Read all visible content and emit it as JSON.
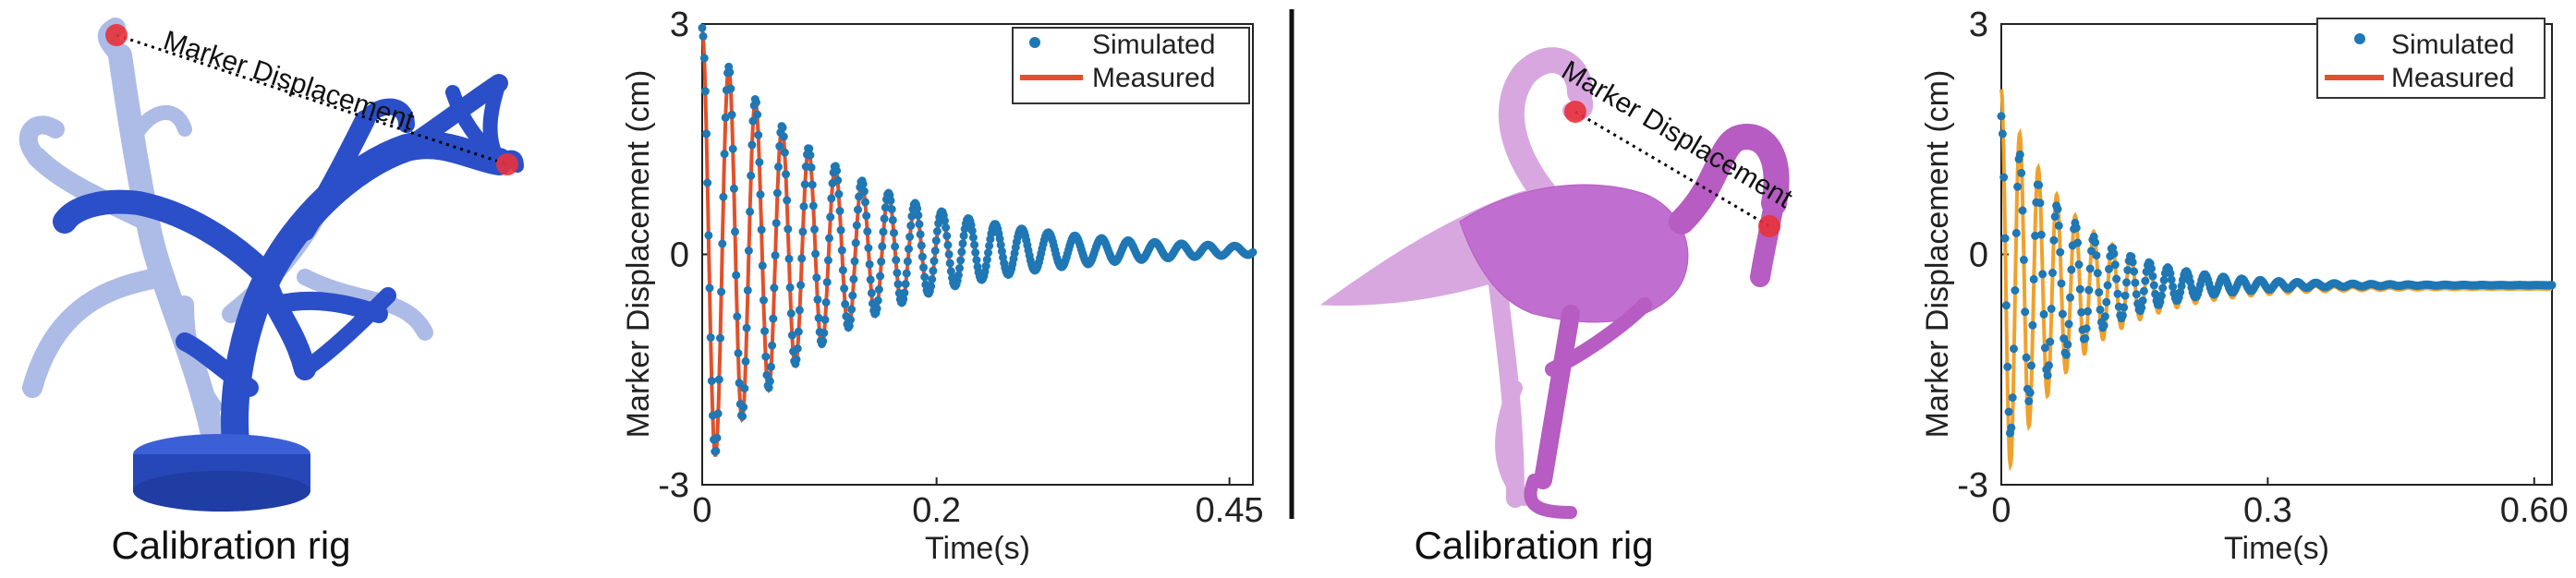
{
  "left_panel": {
    "marker_label": "Marker Displacement",
    "caption": "Calibration rig",
    "color": "#2b4fc9"
  },
  "right_panel": {
    "marker_label": "Marker Displacement",
    "caption": "Calibration rig",
    "color": "#b65cc2"
  },
  "colors": {
    "simulated": "#1f77b4",
    "measured_left": "#e2502a",
    "measured_right": "#f0a12c",
    "marker": "#e8323c"
  },
  "chart_data": [
    {
      "type": "line",
      "xlabel": "Time(s)",
      "ylabel": "Marker Displacement (cm)",
      "xlim": [
        0,
        0.47
      ],
      "ylim": [
        -3,
        3
      ],
      "xticks": [
        {
          "value": 0,
          "label": "0"
        },
        {
          "value": 0.2,
          "label": "0.2"
        },
        {
          "value": 0.45,
          "label": "0.45"
        }
      ],
      "yticks": [
        {
          "value": 3,
          "label": "3"
        },
        {
          "value": 0,
          "label": "0"
        },
        {
          "value": -3,
          "label": "-3"
        }
      ],
      "legend": {
        "position": "top-right",
        "entries": [
          "Simulated",
          "Measured"
        ]
      },
      "series": [
        {
          "name": "Simulated",
          "style": "markers",
          "model": {
            "amplitude": 2.9,
            "frequency_hz": 44,
            "decay_per_s": 8.5,
            "offset": 0.05
          }
        },
        {
          "name": "Measured",
          "style": "line",
          "model": {
            "amplitude": 2.9,
            "frequency_hz": 44,
            "decay_per_s": 8.5,
            "offset": 0.02
          }
        }
      ]
    },
    {
      "type": "line",
      "xlabel": "Time(s)",
      "ylabel": "Marker Displacement (cm)",
      "xlim": [
        0,
        0.62
      ],
      "ylim": [
        -3,
        3
      ],
      "xticks": [
        {
          "value": 0,
          "label": "0"
        },
        {
          "value": 0.3,
          "label": "0.3"
        },
        {
          "value": 0.6,
          "label": "0.60"
        }
      ],
      "yticks": [
        {
          "value": 3,
          "label": "3"
        },
        {
          "value": 0,
          "label": "0"
        },
        {
          "value": -3,
          "label": "-3"
        }
      ],
      "legend": {
        "position": "top-right",
        "entries": [
          "Simulated",
          "Measured"
        ]
      },
      "series": [
        {
          "name": "Simulated",
          "style": "markers",
          "model": {
            "amplitude": 2.2,
            "frequency_hz": 48,
            "decay_per_s": 12,
            "offset": -0.4
          }
        },
        {
          "name": "Measured",
          "style": "line",
          "model": {
            "amplitude": 2.6,
            "frequency_hz": 48,
            "decay_per_s": 12,
            "offset": -0.45
          }
        }
      ]
    }
  ]
}
